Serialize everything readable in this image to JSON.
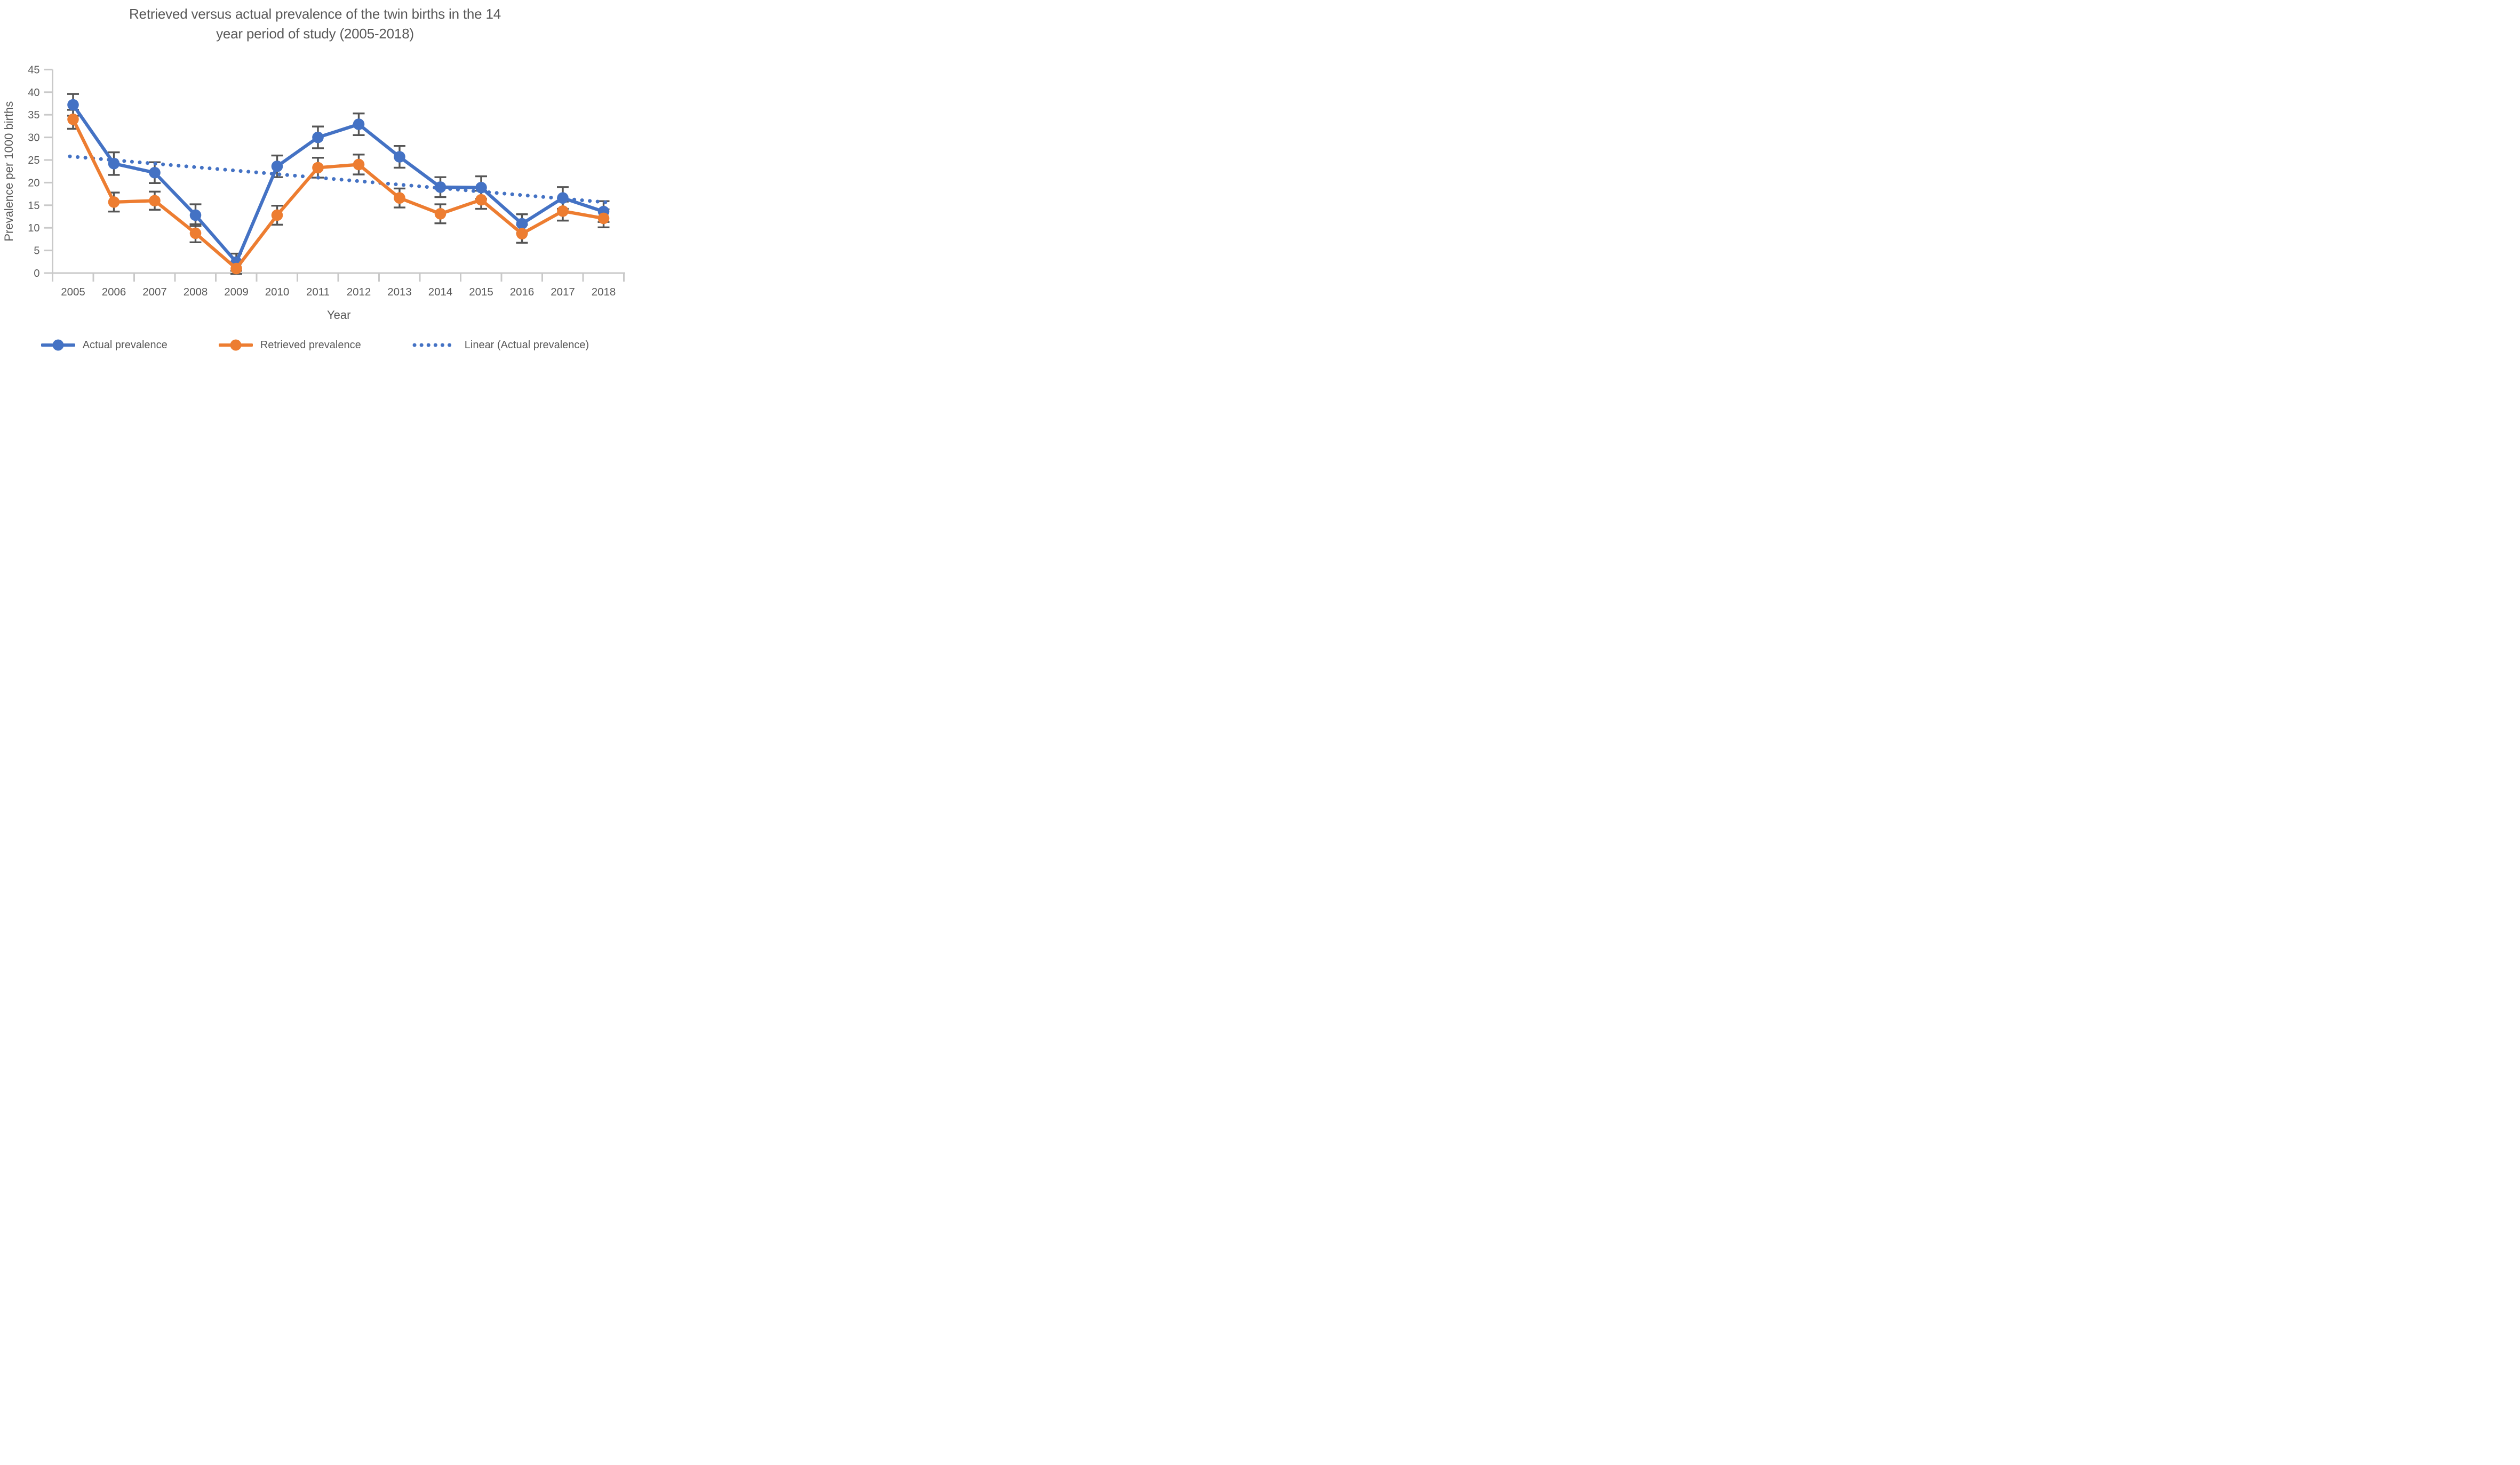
{
  "title_lines": [
    "Retrieved versus actual prevalence of the twin births in the 14",
    "year period of study (2005-2018)"
  ],
  "chart_data": {
    "type": "line",
    "title": "Retrieved versus actual prevalence of the twin births in the 14 year period of study (2005-2018)",
    "xlabel": "Year",
    "ylabel": "Prevalence per 1000 births",
    "categories": [
      "2005",
      "2006",
      "2007",
      "2008",
      "2009",
      "2010",
      "2011",
      "2012",
      "2013",
      "2014",
      "2015",
      "2016",
      "2017",
      "2018"
    ],
    "y_ticks": [
      0,
      5,
      10,
      15,
      20,
      25,
      30,
      35,
      40,
      45
    ],
    "ylim": [
      0,
      45
    ],
    "grid": false,
    "legend_position": "bottom",
    "series": [
      {
        "name": "Actual prevalence",
        "color": "#4472C4",
        "style": "solid",
        "marker": "circle",
        "values": [
          37.2,
          24.2,
          22.2,
          12.8,
          2.4,
          23.6,
          30.0,
          32.9,
          25.7,
          19.0,
          18.9,
          10.9,
          16.6,
          13.6
        ],
        "errors": [
          2.4,
          2.5,
          2.3,
          2.4,
          1.9,
          2.4,
          2.4,
          2.4,
          2.4,
          2.2,
          2.5,
          2.1,
          2.4,
          2.3
        ]
      },
      {
        "name": "Retrieved prevalence",
        "color": "#ED7D31",
        "style": "solid",
        "marker": "circle",
        "values": [
          34.0,
          15.7,
          16.0,
          8.8,
          1.0,
          12.8,
          23.3,
          24.0,
          16.6,
          13.1,
          16.2,
          8.7,
          13.7,
          12.1
        ],
        "errors": [
          2.1,
          2.1,
          2.0,
          2.0,
          1.2,
          2.1,
          2.2,
          2.2,
          2.1,
          2.1,
          2.0,
          2.0,
          2.1,
          2.0
        ]
      },
      {
        "name": "Linear (Actual prevalence)",
        "color": "#4472C4",
        "style": "dotted",
        "marker": "none",
        "trend": {
          "start": 25.8,
          "end": 15.6
        }
      }
    ],
    "error_bar_color": "#555555",
    "axis_color": "#C9C9C9",
    "text_color": "#595959"
  }
}
